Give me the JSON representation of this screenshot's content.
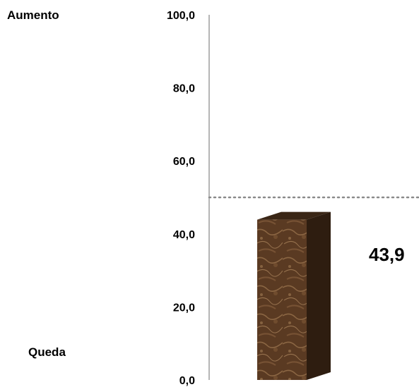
{
  "labels": {
    "top": "Aumento",
    "bottom": "Queda"
  },
  "colors": {
    "bar_front": "#5a3a22",
    "bar_side": "#2e1d10",
    "bar_top": "#3a2616",
    "axis": "#9e9e9e",
    "reference_line": "#8a8a8a"
  },
  "chart_data": {
    "type": "bar",
    "categories": [
      ""
    ],
    "values": [
      43.9
    ],
    "data_labels": [
      "43,9"
    ],
    "ylim": [
      0,
      100
    ],
    "y_ticks": [
      0,
      20,
      40,
      60,
      80,
      100
    ],
    "y_tick_labels": [
      "0,0",
      "20,0",
      "40,0",
      "60,0",
      "80,0",
      "100,0"
    ],
    "reference_line": 50,
    "grid": false,
    "legend": "none"
  }
}
